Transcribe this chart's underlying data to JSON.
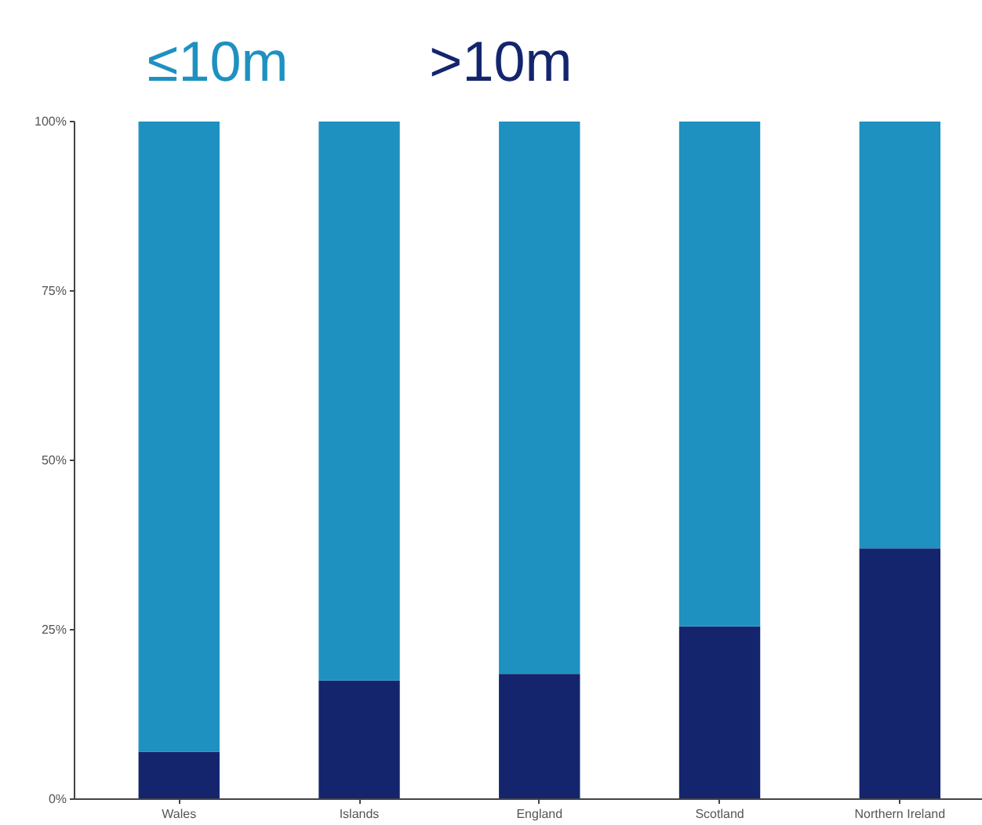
{
  "chart_data": {
    "type": "bar",
    "stacked": true,
    "grid": false,
    "categories": [
      "Wales",
      "Islands",
      "England",
      "Scotland",
      "Northern Ireland"
    ],
    "series": [
      {
        "name": ">10m",
        "color": "#14256e",
        "values": [
          7,
          17.5,
          18.5,
          25.5,
          37
        ]
      },
      {
        "name": "≤10m",
        "color": "#1e91c1",
        "values": [
          93,
          82.5,
          81.5,
          74.5,
          63
        ]
      }
    ],
    "ylim": [
      0,
      100
    ],
    "yticks": [
      {
        "value": 0,
        "label": "0%"
      },
      {
        "value": 25,
        "label": "25%"
      },
      {
        "value": 50,
        "label": "50%"
      },
      {
        "value": 75,
        "label": "75%"
      },
      {
        "value": 100,
        "label": "100%"
      }
    ]
  }
}
